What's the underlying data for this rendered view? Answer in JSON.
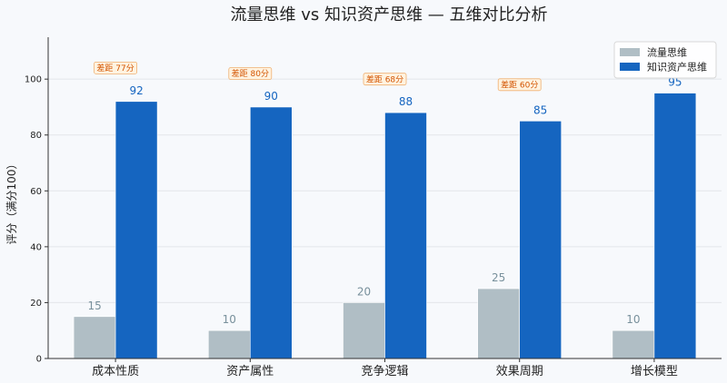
{
  "chart_data": {
    "type": "bar",
    "title": "流量思维 vs 知识资产思维 — 五维对比分析",
    "xlabel": "",
    "ylabel": "评分（满分100）",
    "ylim": [
      0,
      115
    ],
    "yticks": [
      0,
      20,
      40,
      60,
      80,
      100
    ],
    "grid": true,
    "legend_position": "top-right",
    "categories": [
      "成本性质",
      "资产属性",
      "竞争逻辑",
      "效果周期",
      "增长模型"
    ],
    "series": [
      {
        "name": "流量思维",
        "color": "#b0bec5",
        "label_color": "#78909c",
        "values": [
          15,
          10,
          20,
          25,
          10
        ]
      },
      {
        "name": "知识资产思维",
        "color": "#1565c0",
        "label_color": "#1565c0",
        "values": [
          92,
          90,
          88,
          85,
          95
        ]
      }
    ],
    "annotations": [
      {
        "category": "成本性质",
        "text": "差距 77分",
        "y": 104
      },
      {
        "category": "资产属性",
        "text": "差距 80分",
        "y": 102
      },
      {
        "category": "竞争逻辑",
        "text": "差距 68分",
        "y": 100
      },
      {
        "category": "效果周期",
        "text": "差距 60分",
        "y": 98
      }
    ]
  }
}
